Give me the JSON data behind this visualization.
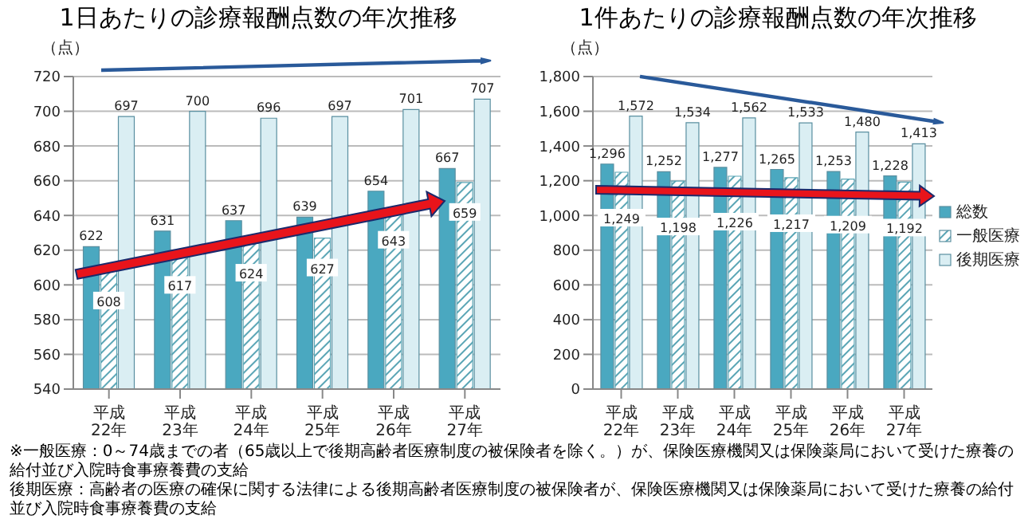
{
  "chart_data": [
    {
      "type": "bar",
      "title": "1日あたりの診療報酬点数の年次推移",
      "ylabel": "（点）",
      "categories": [
        "平成22年",
        "平成23年",
        "平成24年",
        "平成25年",
        "平成26年",
        "平成27年"
      ],
      "series": [
        {
          "color": "#4aa8c0",
          "values": [
            622,
            631,
            637,
            639,
            654,
            667
          ]
        },
        {
          "color": "#5aa5b5",
          "values": [
            608,
            617,
            624,
            627,
            643,
            659
          ]
        },
        {
          "color": "#daeef3",
          "values": [
            697,
            700,
            696,
            697,
            701,
            707
          ]
        }
      ],
      "ylim": [
        540,
        720
      ],
      "yticks": [
        540,
        560,
        580,
        600,
        620,
        640,
        660,
        680,
        700,
        720
      ],
      "grid": "y",
      "data_labels": true,
      "legend": false,
      "annotations": [
        "※一般医療：0～74歳までの者（65歳以上で後期高齢者医療制度の被保険者を除く。）が、保険医療機関又は保険薬局において受けた療養の給付並び入院時食事療養費の支給",
        "後期医療：高齢者の医療の確保に関する法律による後期高齢者医療制度の被保険者が、保険医療機関又は保険薬局において受けた療養の給付並び入院時食事療養費の支給"
      ]
    },
    {
      "type": "bar",
      "title": "1件あたりの診療報酬点数の年次推移",
      "ylabel": "（点）",
      "categories": [
        "平成22年",
        "平成23年",
        "平成24年",
        "平成25年",
        "平成26年",
        "平成27年"
      ],
      "series": [
        {
          "name": "総数",
          "color": "#4aa8c0",
          "values": [
            1296,
            1252,
            1277,
            1265,
            1253,
            1228
          ],
          "value_labels": [
            "1,296",
            "1,252",
            "1,277",
            "1,265",
            "1,253",
            "1,228"
          ]
        },
        {
          "name": "一般医療",
          "color": "#5aa5b5",
          "values": [
            1249,
            1198,
            1226,
            1217,
            1209,
            1192
          ],
          "value_labels": [
            "1,249",
            "1,198",
            "1,226",
            "1,217",
            "1,209",
            "1,192"
          ]
        },
        {
          "name": "後期医療",
          "color": "#daeef3",
          "values": [
            1572,
            1534,
            1562,
            1533,
            1480,
            1413
          ],
          "value_labels": [
            "1,572",
            "1,534",
            "1,562",
            "1,533",
            "1,480",
            "1,413"
          ]
        }
      ],
      "ylim": [
        0,
        1800
      ],
      "yticks": [
        0,
        200,
        400,
        600,
        800,
        {
          "value": 1000,
          "label": "1,000"
        },
        {
          "value": 1200,
          "label": "1,200"
        },
        {
          "value": 1400,
          "label": "1,400"
        },
        {
          "value": 1600,
          "label": "1,600"
        },
        {
          "value": 1800,
          "label": "1,800"
        }
      ],
      "grid": "y",
      "legend": "right"
    }
  ]
}
